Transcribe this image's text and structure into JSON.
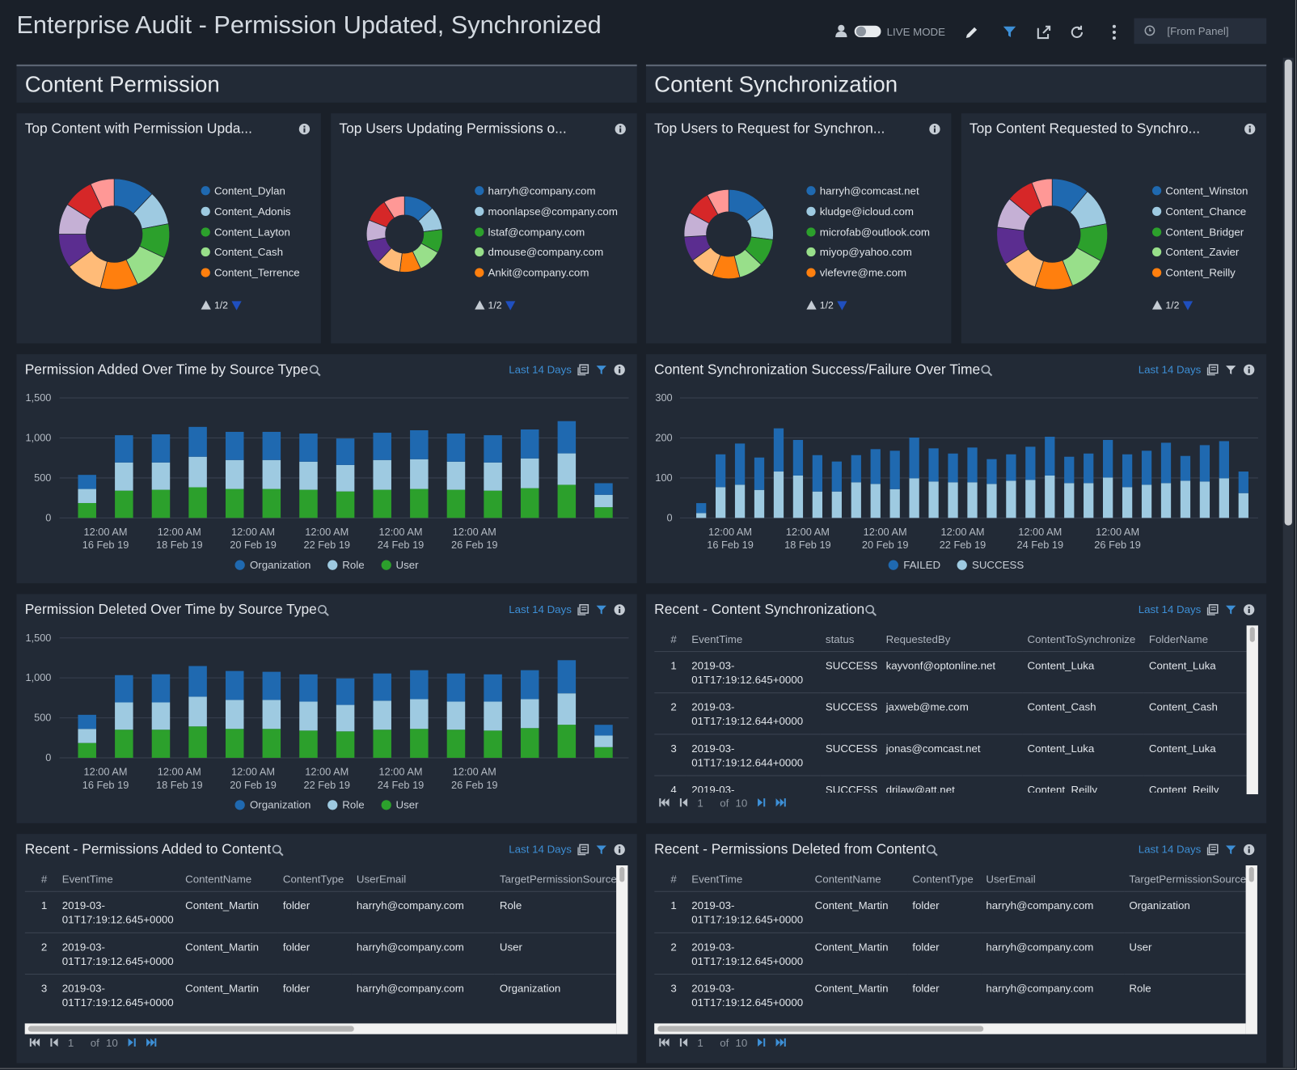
{
  "header": {
    "title": "Enterprise Audit - Permission Updated, Synchronized",
    "live_mode": "LIVE MODE",
    "time_range": "[From Panel]"
  },
  "sections": [
    {
      "title": "Content Permission"
    },
    {
      "title": "Content Synchronization"
    }
  ],
  "panels": [
    {
      "title": "Top Content with Permission Upda...",
      "legend_page": "1/2",
      "chart_data": {
        "type": "pie",
        "categories": [
          "Content_Dylan",
          "Content_Adonis",
          "Content_Layton",
          "Content_Cash",
          "Content_Terrence",
          null,
          null,
          null,
          null,
          null
        ],
        "values": [
          12,
          10,
          10,
          11,
          11,
          11,
          10,
          9,
          9,
          7
        ],
        "colors": [
          "#1f69b0",
          "#9ecae1",
          "#2ca02c",
          "#98df8a",
          "#ff7f0e",
          "#ffbb78",
          "#5b2d90",
          "#c5b0d5",
          "#d62728",
          "#ff9896"
        ]
      }
    },
    {
      "title": "Top Users Updating Permissions o...",
      "legend_page": "1/2",
      "chart_data": {
        "type": "pie",
        "categories": [
          "harryh@company.com",
          "moonlapse@company.com",
          "lstaf@company.com",
          "dmouse@company.com",
          "Ankit@company.com",
          null,
          null,
          null,
          null,
          null
        ],
        "values": [
          13,
          10,
          10,
          10,
          9,
          10,
          10,
          9,
          10,
          9
        ],
        "colors": [
          "#1f69b0",
          "#9ecae1",
          "#2ca02c",
          "#98df8a",
          "#ff7f0e",
          "#ffbb78",
          "#5b2d90",
          "#c5b0d5",
          "#d62728",
          "#ff9896"
        ]
      }
    },
    {
      "title": "Top Users to Request for Synchron...",
      "legend_page": "1/2",
      "chart_data": {
        "type": "pie",
        "categories": [
          "harryh@comcast.net",
          "kludge@icloud.com",
          "microfab@outlook.com",
          "miyop@yahoo.com",
          "vlefevre@me.com",
          null,
          null,
          null,
          null,
          null
        ],
        "values": [
          15,
          12,
          10,
          9,
          10,
          9,
          9,
          9,
          9,
          8
        ],
        "colors": [
          "#1f69b0",
          "#9ecae1",
          "#2ca02c",
          "#98df8a",
          "#ff7f0e",
          "#ffbb78",
          "#5b2d90",
          "#c5b0d5",
          "#d62728",
          "#ff9896"
        ]
      }
    },
    {
      "title": "Top Content Requested to Synchro...",
      "legend_page": "1/2",
      "chart_data": {
        "type": "pie",
        "categories": [
          "Content_Winston",
          "Content_Chance",
          "Content_Bridger",
          "Content_Zavier",
          "Content_Reilly",
          null,
          null,
          null,
          null,
          null
        ],
        "values": [
          11,
          11,
          11,
          11,
          11,
          11,
          11,
          9,
          8,
          6
        ],
        "colors": [
          "#1f69b0",
          "#9ecae1",
          "#2ca02c",
          "#98df8a",
          "#ff7f0e",
          "#ffbb78",
          "#5b2d90",
          "#c5b0d5",
          "#d62728",
          "#ff9896"
        ]
      }
    },
    {
      "title": "Permission Added Over Time by Source Type",
      "time_range": "Last 14 Days",
      "chart_data": {
        "type": "bar",
        "stacked": true,
        "categories": [
          null,
          null,
          null,
          null,
          null,
          null,
          null,
          null,
          null,
          null,
          null,
          null,
          null,
          null,
          null
        ],
        "series": [
          {
            "name": "Organization",
            "color": "#1f69b0",
            "values": [
              176,
              341,
              352,
              373,
              352,
              352,
              352,
              331,
              341,
              362,
              352,
              341,
              362,
              403,
              145
            ]
          },
          {
            "name": "Role",
            "color": "#9ecae1",
            "values": [
              176,
              352,
              341,
              382,
              362,
              362,
              351,
              331,
              372,
              372,
              351,
              352,
              372,
              393,
              155
            ]
          },
          {
            "name": "User",
            "color": "#2ca02c",
            "values": [
              186,
              341,
              352,
              383,
              362,
              362,
              352,
              331,
              352,
              362,
              352,
              341,
              372,
              414,
              134
            ]
          }
        ],
        "ylim": [
          0,
          1500
        ],
        "yticks": [
          0,
          500,
          {
            "value": 1000,
            "label": "1,000"
          },
          {
            "value": 1500,
            "label": "1,500"
          }
        ],
        "xticks": [
          {
            "value": 0.5,
            "label": "12:00 AM 16 Feb 19"
          },
          {
            "value": 2.5,
            "label": "12:00 AM 18 Feb 19"
          },
          {
            "value": 4.5,
            "label": "12:00 AM 20 Feb 19"
          },
          {
            "value": 6.5,
            "label": "12:00 AM 22 Feb 19"
          },
          {
            "value": 8.5,
            "label": "12:00 AM 24 Feb 19"
          },
          {
            "value": 10.5,
            "label": "12:00 AM 26 Feb 19"
          }
        ],
        "grid": true
      }
    },
    {
      "title": "Content Synchronization Success/Failure Over Time",
      "time_range": "Last 14 Days",
      "chart_data": {
        "type": "bar",
        "stacked": true,
        "categories": [
          null,
          null,
          null,
          null,
          null,
          null,
          null,
          null,
          null,
          null,
          null,
          null,
          null,
          null,
          null,
          null,
          null,
          null,
          null,
          null,
          null,
          null,
          null,
          null,
          null,
          null,
          null,
          null,
          null
        ],
        "series": [
          {
            "name": "FAILED",
            "color": "#1f69b0",
            "values": [
              25,
              82,
              103,
              81,
              108,
              89,
              91,
              75,
              68,
              87,
              96,
              102,
              83,
              72,
              87,
              62,
              66,
              83,
              97,
              66,
              74,
              94,
              82,
              85,
              101,
              62,
              91,
              93,
              54
            ]
          },
          {
            "name": "SUCCESS",
            "color": "#9ecae1",
            "values": [
              12,
              77,
              83,
              70,
              116,
              106,
              66,
              66,
              89,
              85,
              72,
              99,
              91,
              89,
              89,
              85,
              93,
              95,
              106,
              87,
              87,
              101,
              77,
              83,
              87,
              93,
              91,
              99,
              62
            ]
          }
        ],
        "ylim": [
          0,
          300
        ],
        "yticks": [
          0,
          100,
          200,
          300
        ],
        "xticks": [
          {
            "value": 1.5,
            "label": "12:00 AM 16 Feb 19"
          },
          {
            "value": 5.5,
            "label": "12:00 AM 18 Feb 19"
          },
          {
            "value": 9.5,
            "label": "12:00 AM 20 Feb 19"
          },
          {
            "value": 13.5,
            "label": "12:00 AM 22 Feb 19"
          },
          {
            "value": 17.5,
            "label": "12:00 AM 24 Feb 19"
          },
          {
            "value": 21.5,
            "label": "12:00 AM 26 Feb 19"
          }
        ],
        "grid": true
      }
    },
    {
      "title": "Permission Deleted Over Time by Source Type",
      "time_range": "Last 14 Days",
      "chart_data": {
        "type": "bar",
        "stacked": true,
        "categories": [
          null,
          null,
          null,
          null,
          null,
          null,
          null,
          null,
          null,
          null,
          null,
          null,
          null,
          null,
          null
        ],
        "series": [
          {
            "name": "Organization",
            "color": "#1f69b0",
            "values": [
              176,
              341,
              352,
              383,
              362,
              352,
              341,
              331,
              341,
              362,
              352,
              341,
              362,
              414,
              134
            ]
          },
          {
            "name": "Role",
            "color": "#9ecae1",
            "values": [
              176,
              341,
              341,
              372,
              362,
              362,
              362,
              331,
              362,
              372,
              351,
              362,
              362,
              393,
              145
            ]
          },
          {
            "name": "User",
            "color": "#2ca02c",
            "values": [
              186,
              352,
              352,
              393,
              362,
              362,
              341,
              331,
              352,
              362,
              352,
              341,
              372,
              414,
              134
            ]
          }
        ],
        "ylim": [
          0,
          1500
        ],
        "yticks": [
          0,
          500,
          {
            "value": 1000,
            "label": "1,000"
          },
          {
            "value": 1500,
            "label": "1,500"
          }
        ],
        "xticks": [
          {
            "value": 0.5,
            "label": "12:00 AM 16 Feb 19"
          },
          {
            "value": 2.5,
            "label": "12:00 AM 18 Feb 19"
          },
          {
            "value": 4.5,
            "label": "12:00 AM 20 Feb 19"
          },
          {
            "value": 6.5,
            "label": "12:00 AM 22 Feb 19"
          },
          {
            "value": 8.5,
            "label": "12:00 AM 24 Feb 19"
          },
          {
            "value": 10.5,
            "label": "12:00 AM 26 Feb 19"
          }
        ],
        "grid": true
      }
    },
    {
      "title": "Recent - Content Synchronization",
      "time_range": "Last 14 Days",
      "table": {
        "columns": [
          "#",
          "EventTime",
          "status",
          "RequestedBy",
          "ContentToSynchronize",
          "FolderName"
        ],
        "rows": [
          [
            1,
            "2019-03-01T17:19:12.645+0000",
            "SUCCESS",
            "kayvonf@optonline.net",
            "Content_Luka",
            "Content_Luka"
          ],
          [
            2,
            "2019-03-01T17:19:12.644+0000",
            "SUCCESS",
            "jaxweb@me.com",
            "Content_Cash",
            "Content_Cash"
          ],
          [
            3,
            "2019-03-01T17:19:12.644+0000",
            "SUCCESS",
            "jonas@comcast.net",
            "Content_Luka",
            "Content_Luka"
          ],
          [
            4,
            "2019-03-",
            "SUCCESS",
            "drjlaw@att.net",
            "Content_Reilly",
            "Content_Reilly"
          ]
        ]
      },
      "pager": {
        "page": 1,
        "of": "of",
        "pages": 10
      }
    },
    {
      "title": "Recent - Permissions Added to Content",
      "time_range": "Last 14 Days",
      "table": {
        "columns": [
          "#",
          "EventTime",
          "ContentName",
          "ContentType",
          "UserEmail",
          "TargetPermissionSource"
        ],
        "rows": [
          [
            1,
            "2019-03-01T17:19:12.645+0000",
            "Content_Martin",
            "folder",
            "harryh@company.com",
            "Role"
          ],
          [
            2,
            "2019-03-01T17:19:12.645+0000",
            "Content_Martin",
            "folder",
            "harryh@company.com",
            "User"
          ],
          [
            3,
            "2019-03-01T17:19:12.645+0000",
            "Content_Martin",
            "folder",
            "harryh@company.com",
            "Organization"
          ]
        ]
      },
      "pager": {
        "page": 1,
        "of": "of",
        "pages": 10
      }
    },
    {
      "title": "Recent - Permissions Deleted from Content",
      "time_range": "Last 14 Days",
      "table": {
        "columns": [
          "#",
          "EventTime",
          "ContentName",
          "ContentType",
          "UserEmail",
          "TargetPermissionSource"
        ],
        "rows": [
          [
            1,
            "2019-03-01T17:19:12.645+0000",
            "Content_Martin",
            "folder",
            "harryh@company.com",
            "Organization"
          ],
          [
            2,
            "2019-03-01T17:19:12.645+0000",
            "Content_Martin",
            "folder",
            "harryh@company.com",
            "User"
          ],
          [
            3,
            "2019-03-01T17:19:12.645+0000",
            "Content_Martin",
            "folder",
            "harryh@company.com",
            "Role"
          ]
        ]
      },
      "pager": {
        "page": 1,
        "of": "of",
        "pages": 10
      }
    }
  ]
}
